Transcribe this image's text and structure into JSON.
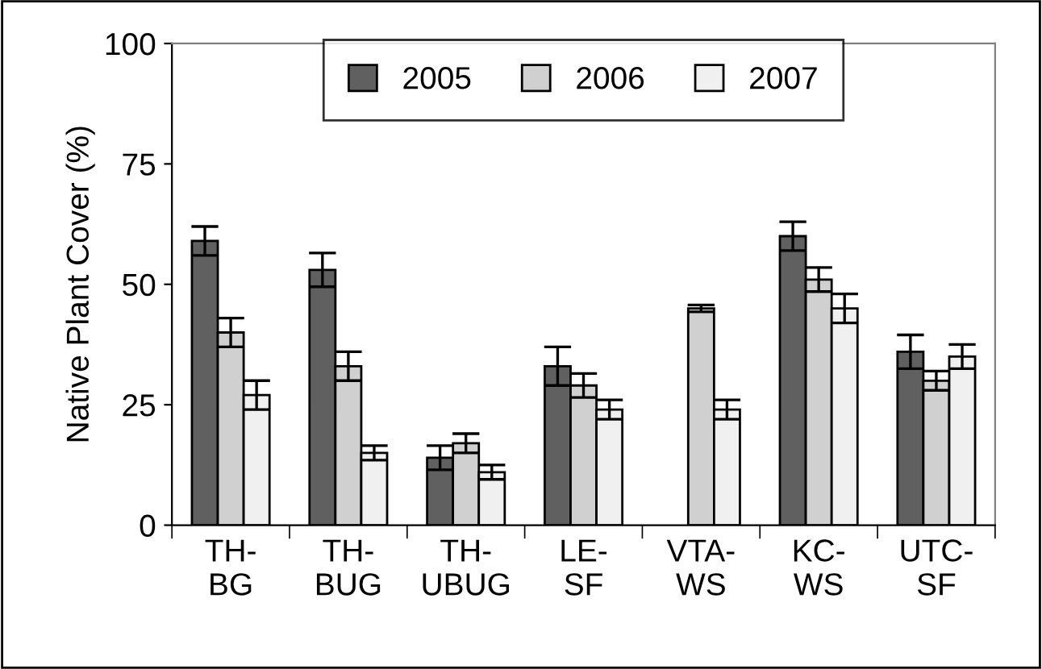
{
  "chart_data": {
    "type": "bar",
    "ylabel": "Native Plant Cover (%)",
    "categories": [
      "TH-\nBG",
      "TH-\nBUG",
      "TH-\nUBUG",
      "LE-\nSF",
      "VTA-\nWS",
      "KC-\nWS",
      "UTC-\nSF"
    ],
    "series": [
      {
        "name": "2005",
        "color": "#606060",
        "values": [
          59,
          53,
          14,
          33,
          null,
          60,
          36
        ],
        "errors": [
          3,
          3.5,
          2.5,
          4,
          null,
          3,
          3.5
        ]
      },
      {
        "name": "2006",
        "color": "#d0d0d0",
        "values": [
          40,
          33,
          17,
          29,
          45,
          51,
          30
        ],
        "errors": [
          3,
          3,
          2,
          2.5,
          0.7,
          2.5,
          2
        ]
      },
      {
        "name": "2007",
        "color": "#f0f0f0",
        "values": [
          27,
          15,
          11,
          24,
          24,
          45,
          35
        ],
        "errors": [
          3,
          1.5,
          1.5,
          2,
          2,
          3,
          2.5
        ]
      }
    ],
    "ylim": [
      0,
      100
    ],
    "yticks": [
      0,
      25,
      50,
      75,
      100
    ],
    "grid": false,
    "legend": "top"
  }
}
